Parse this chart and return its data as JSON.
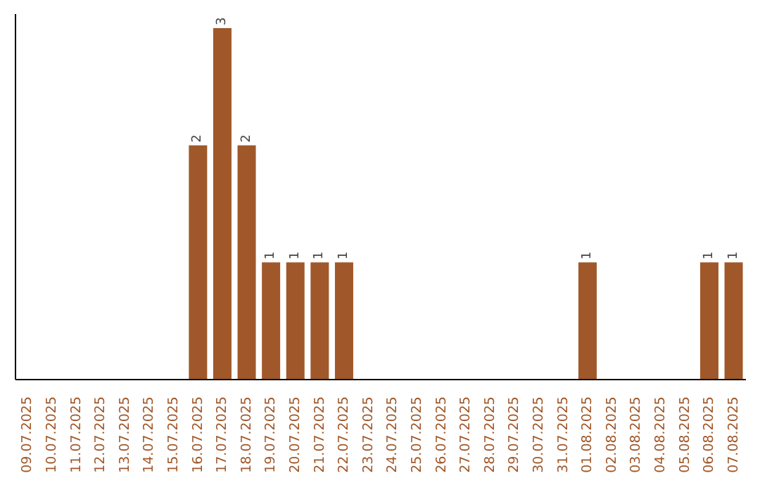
{
  "chart_data": {
    "type": "bar",
    "categories": [
      "09.07.2025",
      "10.07.2025",
      "11.07.2025",
      "12.07.2025",
      "13.07.2025",
      "14.07.2025",
      "15.07.2025",
      "16.07.2025",
      "17.07.2025",
      "18.07.2025",
      "19.07.2025",
      "20.07.2025",
      "21.07.2025",
      "22.07.2025",
      "23.07.2025",
      "24.07.2025",
      "25.07.2025",
      "26.07.2025",
      "27.07.2025",
      "28.07.2025",
      "29.07.2025",
      "30.07.2025",
      "31.07.2025",
      "01.08.2025",
      "02.08.2025",
      "03.08.2025",
      "04.08.2025",
      "05.08.2025",
      "06.08.2025",
      "07.08.2025"
    ],
    "values": [
      0,
      0,
      0,
      0,
      0,
      0,
      0,
      2,
      3,
      2,
      1,
      1,
      1,
      1,
      0,
      0,
      0,
      0,
      0,
      0,
      0,
      0,
      0,
      1,
      0,
      0,
      0,
      0,
      1,
      1
    ],
    "value_labels": [
      null,
      null,
      null,
      null,
      null,
      null,
      null,
      "2",
      "3",
      "2",
      "1",
      "1",
      "1",
      "1",
      null,
      null,
      null,
      null,
      null,
      null,
      null,
      null,
      null,
      "1",
      null,
      null,
      null,
      null,
      "1",
      "1"
    ],
    "color": "#a0582a"
  }
}
